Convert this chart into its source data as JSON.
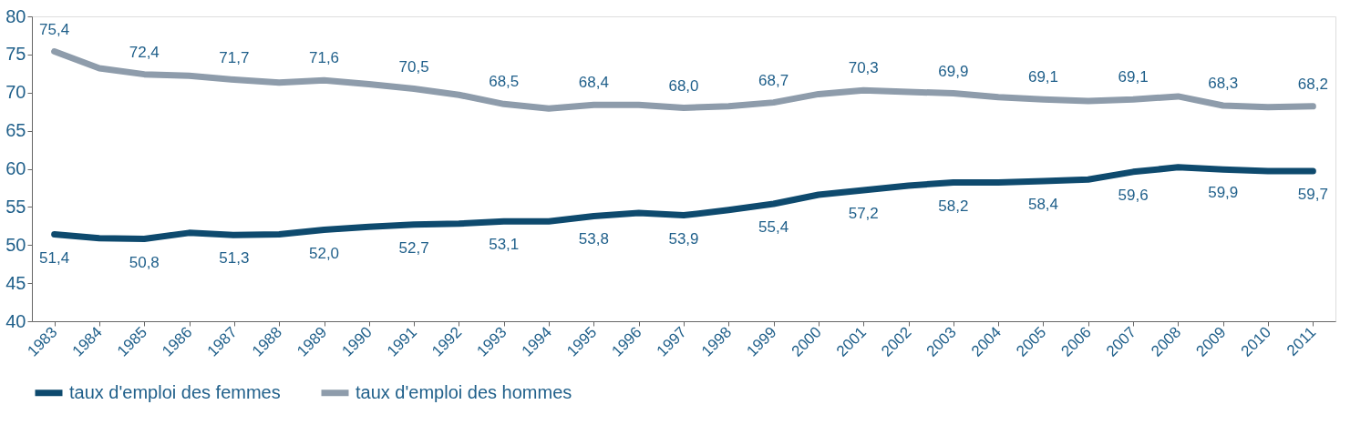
{
  "chart_data": {
    "type": "line",
    "categories": [
      "1983",
      "1984",
      "1985",
      "1986",
      "1987",
      "1988",
      "1989",
      "1990",
      "1991",
      "1992",
      "1993",
      "1994",
      "1995",
      "1996",
      "1997",
      "1998",
      "1999",
      "2000",
      "2001",
      "2002",
      "2003",
      "2004",
      "2005",
      "2006",
      "2007",
      "2008",
      "2009",
      "2010",
      "2011"
    ],
    "series": [
      {
        "name": "taux d'emploi des femmes",
        "color": "#0e4a6e",
        "values": [
          51.4,
          50.9,
          50.8,
          51.6,
          51.3,
          51.4,
          52.0,
          52.4,
          52.7,
          52.8,
          53.1,
          53.1,
          53.8,
          54.2,
          53.9,
          54.6,
          55.4,
          56.6,
          57.2,
          57.8,
          58.2,
          58.2,
          58.4,
          58.6,
          59.6,
          60.2,
          59.9,
          59.7,
          59.7
        ],
        "value_labels": [
          "51,4",
          null,
          "50,8",
          null,
          "51,3",
          null,
          "52,0",
          null,
          "52,7",
          null,
          "53,1",
          null,
          "53,8",
          null,
          "53,9",
          null,
          "55,4",
          null,
          "57,2",
          null,
          "58,2",
          null,
          "58,4",
          null,
          "59,6",
          null,
          "59,9",
          null,
          "59,7"
        ]
      },
      {
        "name": "taux d'emploi des hommes",
        "color": "#8e9cab",
        "values": [
          75.4,
          73.2,
          72.4,
          72.2,
          71.7,
          71.3,
          71.6,
          71.1,
          70.5,
          69.7,
          68.5,
          67.9,
          68.4,
          68.4,
          68.0,
          68.2,
          68.7,
          69.8,
          70.3,
          70.1,
          69.9,
          69.4,
          69.1,
          68.9,
          69.1,
          69.5,
          68.3,
          68.1,
          68.2
        ],
        "value_labels": [
          "75,4",
          null,
          "72,4",
          null,
          "71,7",
          null,
          "71,6",
          null,
          "70,5",
          null,
          "68,5",
          null,
          "68,4",
          null,
          "68,0",
          null,
          "68,7",
          null,
          "70,3",
          null,
          "69,9",
          null,
          "69,1",
          null,
          "69,1",
          null,
          "68,3",
          null,
          "68,2"
        ]
      }
    ],
    "ylim": [
      40,
      80
    ],
    "yticks": [
      40,
      45,
      50,
      55,
      60,
      65,
      70,
      75,
      80
    ],
    "grid": false,
    "legend": "bottom",
    "marker": "none",
    "line_style": "solid"
  }
}
